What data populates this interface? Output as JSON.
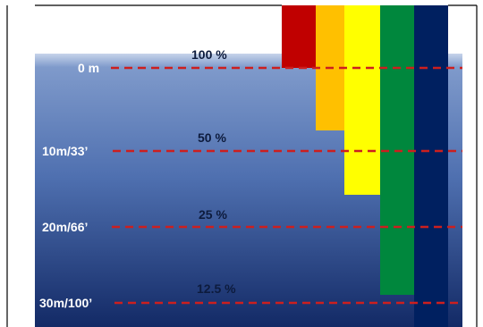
{
  "colors": {
    "water_top": "#c7d4ea",
    "water_mid": "#4f70b0",
    "water_bottom": "#132a66",
    "depth_line": "#cc1f1f",
    "frame": "#000000",
    "depth_label_text": "#ffffff",
    "percent_label_text": "#0d1b3d"
  },
  "depth_levels": [
    {
      "depth_label": "0 m",
      "percent_label": "100 %"
    },
    {
      "depth_label": "10m/33’",
      "percent_label": "50 %"
    },
    {
      "depth_label": "20m/66’",
      "percent_label": "25 %"
    },
    {
      "depth_label": "30m/100’",
      "percent_label": "12.5 %"
    }
  ],
  "light_bands": [
    {
      "name": "red",
      "color": "#c00000"
    },
    {
      "name": "orange",
      "color": "#ffc000"
    },
    {
      "name": "yellow",
      "color": "#ffff00"
    },
    {
      "name": "green",
      "color": "#00873d"
    },
    {
      "name": "blue",
      "color": "#002060"
    }
  ]
}
